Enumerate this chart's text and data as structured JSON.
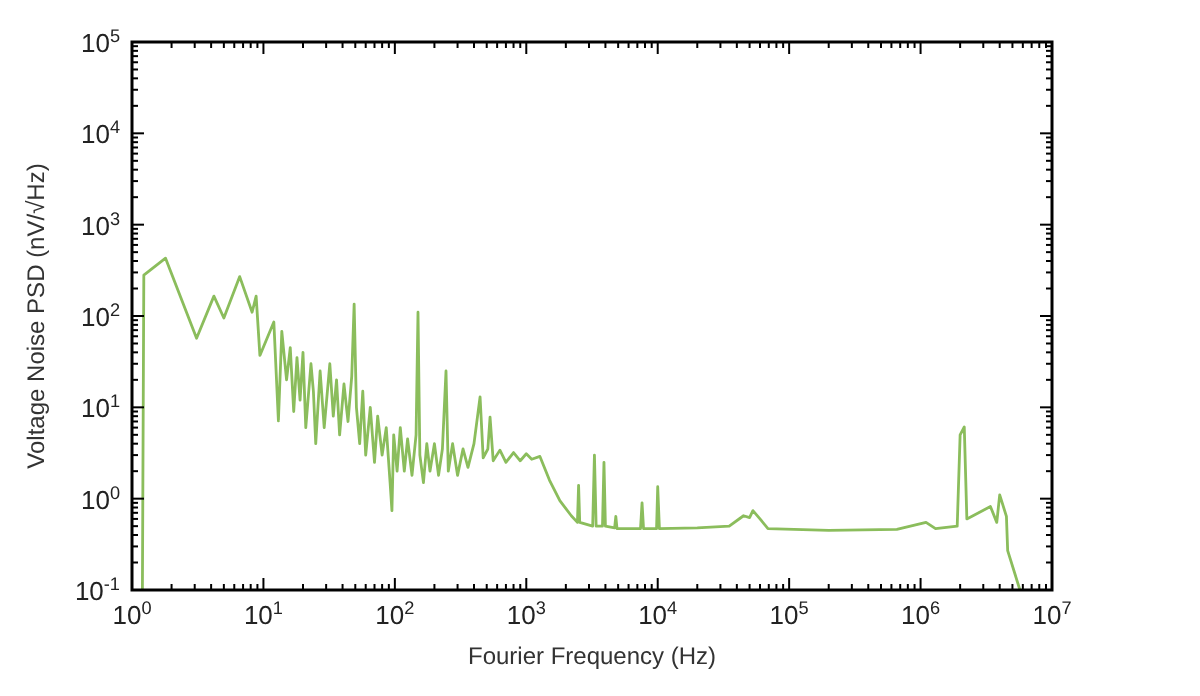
{
  "chart_data": {
    "type": "line",
    "xlabel": "Fourier Frequency (Hz)",
    "ylabel": "Voltage Noise PSD (nV/√Hz)",
    "log": "xy",
    "xlim": [
      1,
      10000000
    ],
    "ylim": [
      0.1,
      100000
    ],
    "xticks": [
      {
        "value": 1,
        "label": "10$^{0}$"
      },
      {
        "value": 10,
        "label": "10$^{1}$"
      },
      {
        "value": 100,
        "label": "10$^{2}$"
      },
      {
        "value": 1000,
        "label": "10$^{3}$"
      },
      {
        "value": 10000,
        "label": "10$^{4}$"
      },
      {
        "value": 100000,
        "label": "10$^{5}$"
      },
      {
        "value": 1000000,
        "label": "10$^{6}$"
      },
      {
        "value": 10000000,
        "label": "10$^{7}$"
      }
    ],
    "yticks": [
      {
        "value": 0.1,
        "label": "10$^{-1}$"
      },
      {
        "value": 1,
        "label": "10$^{0}$"
      },
      {
        "value": 10,
        "label": "10$^{1}$"
      },
      {
        "value": 100,
        "label": "10$^{2}$"
      },
      {
        "value": 1000,
        "label": "10$^{3}$"
      },
      {
        "value": 10000,
        "label": "10$^{4}$"
      },
      {
        "value": 100000,
        "label": "10$^{5}$"
      }
    ],
    "grid": false,
    "marker": "none",
    "line_style": "solid",
    "series": [
      {
        "color": "#8bbd5c",
        "x": [
          1.2,
          1.23,
          1.8,
          3.1,
          4.2,
          5,
          6.6,
          8.2,
          8.8,
          9.4,
          12,
          13,
          13.8,
          15,
          16,
          17,
          18,
          19,
          20,
          21,
          23,
          24,
          25,
          27,
          29,
          32,
          34,
          36,
          38,
          41,
          44,
          47,
          49,
          51,
          54,
          57,
          60,
          65,
          70,
          74,
          80,
          86,
          92,
          95,
          98,
          104,
          110,
          118,
          125,
          135,
          145,
          150,
          155,
          165,
          175,
          185,
          200,
          215,
          230,
          245,
          255,
          275,
          300,
          330,
          360,
          400,
          445,
          470,
          510,
          530,
          560,
          630,
          700,
          800,
          900,
          1000,
          1100,
          1270,
          1500,
          1800,
          2200,
          2450,
          2500,
          2550,
          3200,
          3300,
          3400,
          3800,
          3900,
          4000,
          4700,
          4800,
          4900,
          7400,
          7600,
          7800,
          9800,
          10000,
          10300,
          20000,
          35000,
          45000,
          50000,
          53000,
          60000,
          69000,
          200000,
          660000,
          1100000,
          1300000,
          1900000,
          2000000,
          2150000,
          2250000,
          3400000,
          3800000,
          4000000,
          4500000,
          4600000,
          5700000
        ],
        "values": [
          0.1,
          280,
          430,
          57,
          165,
          95,
          270,
          110,
          165,
          37,
          86,
          7.1,
          68,
          20,
          45,
          9,
          35,
          12,
          40,
          6,
          30,
          15,
          4,
          25,
          6,
          30,
          8,
          20,
          5,
          18,
          7,
          22,
          135,
          10,
          4,
          15,
          3,
          10,
          2.5,
          8,
          3,
          6,
          1.5,
          0.74,
          5,
          2,
          6,
          2,
          4.5,
          1.8,
          5,
          110,
          3,
          1.5,
          4,
          2,
          4,
          1.8,
          3.5,
          25,
          2,
          4,
          1.8,
          3.5,
          2.2,
          4,
          13,
          2.8,
          3.5,
          7.8,
          2.6,
          3.4,
          2.5,
          3.2,
          2.6,
          3.1,
          2.7,
          2.9,
          1.6,
          0.95,
          0.65,
          0.55,
          1.4,
          0.55,
          0.5,
          3,
          0.5,
          0.5,
          2.5,
          0.5,
          0.48,
          0.64,
          0.47,
          0.47,
          0.9,
          0.47,
          0.47,
          1.35,
          0.47,
          0.48,
          0.5,
          0.65,
          0.62,
          0.74,
          0.6,
          0.47,
          0.45,
          0.46,
          0.55,
          0.47,
          0.5,
          5,
          6.1,
          0.6,
          0.82,
          0.55,
          1.1,
          0.64,
          0.27,
          0.1
        ]
      }
    ]
  }
}
